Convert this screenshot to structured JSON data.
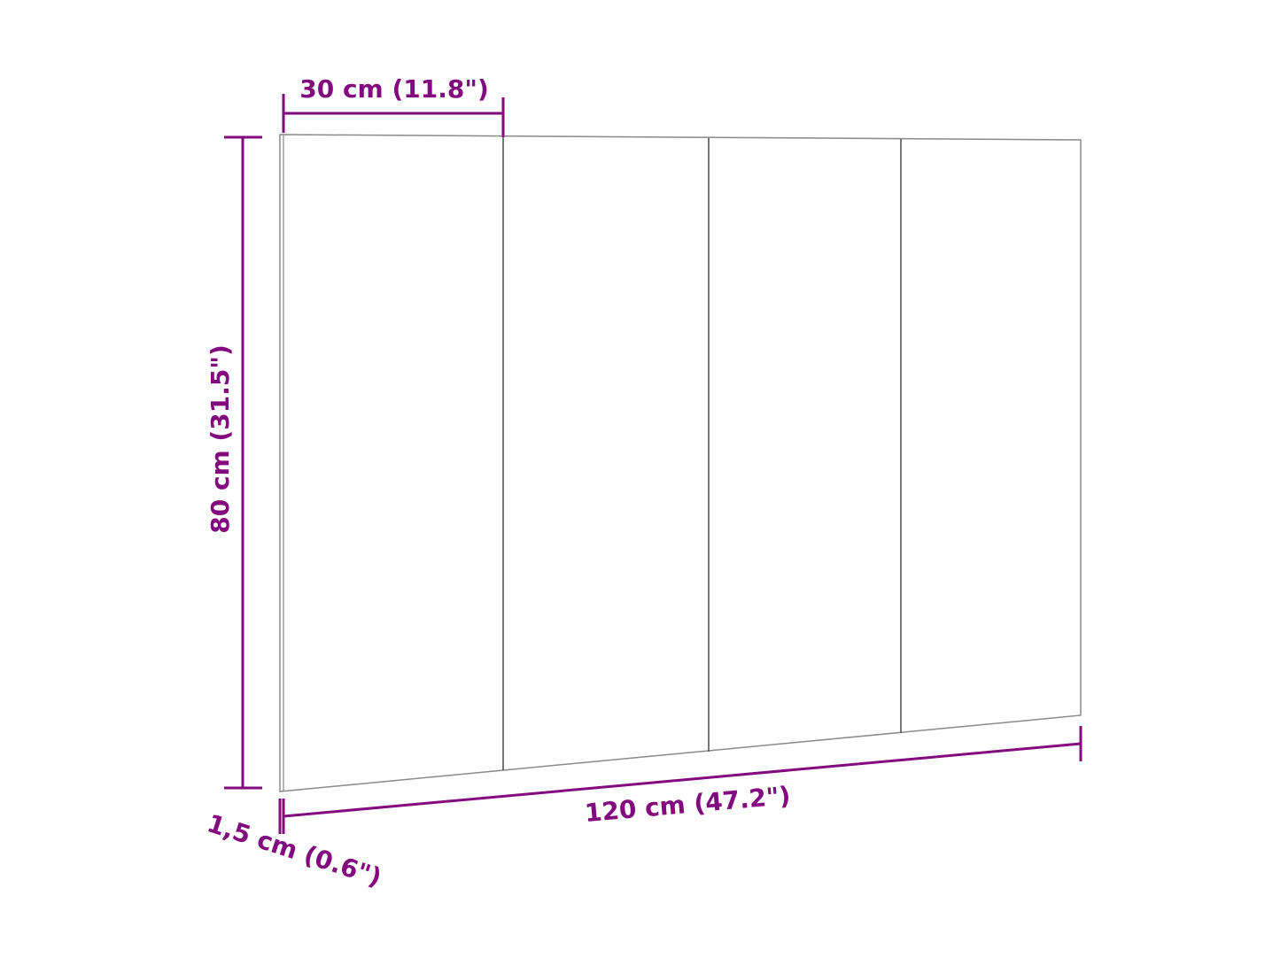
{
  "colors": {
    "dimension": "#820a7e",
    "outline": "#8a8a8a",
    "divider": "#555555"
  },
  "panel": {
    "sections": 4
  },
  "dimensions": {
    "section_width": "30 cm (11.8\")",
    "height": "80 cm (31.5\")",
    "total_width": "120 cm (47.2\")",
    "thickness": "1,5 cm (0.6\")"
  }
}
